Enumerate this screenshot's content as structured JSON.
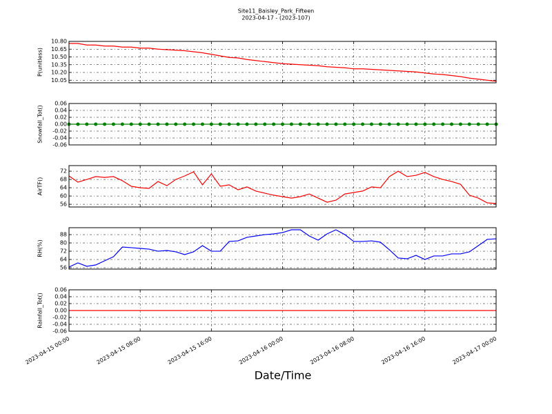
{
  "figure": {
    "title": "Site11_Baisley_Park_Fifteen",
    "subtitle": "2023-04-17 - (2023-107)",
    "xlabel": "Date/Time"
  },
  "chart_data": [
    {
      "type": "line",
      "ylabel": "P(unitless)",
      "grid": true,
      "x": [
        "2023-04-15 00:00",
        "2023-04-15 01:00",
        "2023-04-15 02:00",
        "2023-04-15 03:00",
        "2023-04-15 04:00",
        "2023-04-15 05:00",
        "2023-04-15 06:00",
        "2023-04-15 07:00",
        "2023-04-15 08:00",
        "2023-04-15 09:00",
        "2023-04-15 10:00",
        "2023-04-15 11:00",
        "2023-04-15 12:00",
        "2023-04-15 13:00",
        "2023-04-15 14:00",
        "2023-04-15 15:00",
        "2023-04-15 16:00",
        "2023-04-15 17:00",
        "2023-04-15 18:00",
        "2023-04-15 19:00",
        "2023-04-15 20:00",
        "2023-04-15 21:00",
        "2023-04-15 22:00",
        "2023-04-15 23:00",
        "2023-04-16 00:00",
        "2023-04-16 01:00",
        "2023-04-16 02:00",
        "2023-04-16 03:00",
        "2023-04-16 04:00",
        "2023-04-16 05:00",
        "2023-04-16 06:00",
        "2023-04-16 07:00",
        "2023-04-16 08:00",
        "2023-04-16 09:00",
        "2023-04-16 10:00",
        "2023-04-16 11:00",
        "2023-04-16 12:00",
        "2023-04-16 13:00",
        "2023-04-16 14:00",
        "2023-04-16 15:00",
        "2023-04-16 16:00",
        "2023-04-16 17:00",
        "2023-04-16 18:00",
        "2023-04-16 19:00",
        "2023-04-16 20:00",
        "2023-04-16 21:00",
        "2023-04-16 22:00",
        "2023-04-16 23:00",
        "2023-04-17 00:00"
      ],
      "series": [
        {
          "color": "#ff0000",
          "values": [
            10.76,
            10.76,
            10.73,
            10.73,
            10.71,
            10.71,
            10.69,
            10.69,
            10.67,
            10.67,
            10.65,
            10.64,
            10.63,
            10.62,
            10.6,
            10.58,
            10.55,
            10.52,
            10.49,
            10.48,
            10.45,
            10.43,
            10.41,
            10.39,
            10.37,
            10.36,
            10.35,
            10.34,
            10.33,
            10.31,
            10.3,
            10.29,
            10.27,
            10.27,
            10.26,
            10.25,
            10.24,
            10.23,
            10.22,
            10.21,
            10.19,
            10.17,
            10.16,
            10.14,
            10.12,
            10.09,
            10.07,
            10.05,
            10.03
          ]
        }
      ],
      "xlim": [
        "2023-04-15 00:00",
        "2023-04-17 00:00"
      ],
      "xticks": [
        "2023-04-15 00:00",
        "2023-04-15 08:00",
        "2023-04-15 16:00",
        "2023-04-16 00:00",
        "2023-04-16 08:00",
        "2023-04-16 16:00",
        "2023-04-17 00:00"
      ],
      "ylim": [
        10.0,
        10.8
      ],
      "yticks": [
        10.05,
        {
          "value": 10.2,
          "label": "10.20"
        },
        10.35,
        {
          "value": 10.5,
          "label": "10.50"
        },
        10.65,
        {
          "value": 10.8,
          "label": "10.80"
        }
      ]
    },
    {
      "type": "line",
      "ylabel": "Snowfall_Tot()",
      "grid": true,
      "marker": true,
      "x": [
        "2023-04-15 00:00",
        "2023-04-15 01:00",
        "2023-04-15 02:00",
        "2023-04-15 03:00",
        "2023-04-15 04:00",
        "2023-04-15 05:00",
        "2023-04-15 06:00",
        "2023-04-15 07:00",
        "2023-04-15 08:00",
        "2023-04-15 09:00",
        "2023-04-15 10:00",
        "2023-04-15 11:00",
        "2023-04-15 12:00",
        "2023-04-15 13:00",
        "2023-04-15 14:00",
        "2023-04-15 15:00",
        "2023-04-15 16:00",
        "2023-04-15 17:00",
        "2023-04-15 18:00",
        "2023-04-15 19:00",
        "2023-04-15 20:00",
        "2023-04-15 21:00",
        "2023-04-15 22:00",
        "2023-04-15 23:00",
        "2023-04-16 00:00",
        "2023-04-16 01:00",
        "2023-04-16 02:00",
        "2023-04-16 03:00",
        "2023-04-16 04:00",
        "2023-04-16 05:00",
        "2023-04-16 06:00",
        "2023-04-16 07:00",
        "2023-04-16 08:00",
        "2023-04-16 09:00",
        "2023-04-16 10:00",
        "2023-04-16 11:00",
        "2023-04-16 12:00",
        "2023-04-16 13:00",
        "2023-04-16 14:00",
        "2023-04-16 15:00",
        "2023-04-16 16:00",
        "2023-04-16 17:00",
        "2023-04-16 18:00",
        "2023-04-16 19:00",
        "2023-04-16 20:00",
        "2023-04-16 21:00",
        "2023-04-16 22:00",
        "2023-04-16 23:00",
        "2023-04-17 00:00"
      ],
      "series": [
        {
          "color": "#008000",
          "values": [
            0,
            0,
            0,
            0,
            0,
            0,
            0,
            0,
            0,
            0,
            0,
            0,
            0,
            0,
            0,
            0,
            0,
            0,
            0,
            0,
            0,
            0,
            0,
            0,
            0,
            0,
            0,
            0,
            0,
            0,
            0,
            0,
            0,
            0,
            0,
            0,
            0,
            0,
            0,
            0,
            0,
            0,
            0,
            0,
            0,
            0,
            0,
            0,
            0
          ]
        }
      ],
      "xlim": [
        "2023-04-15 00:00",
        "2023-04-17 00:00"
      ],
      "xticks": [
        "2023-04-15 00:00",
        "2023-04-15 08:00",
        "2023-04-15 16:00",
        "2023-04-16 00:00",
        "2023-04-16 08:00",
        "2023-04-16 16:00",
        "2023-04-17 00:00"
      ],
      "ylim": [
        -0.06,
        0.06
      ],
      "yticks": [
        -0.06,
        -0.04,
        -0.02,
        {
          "value": 0,
          "label": "0.00"
        },
        0.02,
        0.04,
        0.06
      ]
    },
    {
      "type": "line",
      "ylabel": "AirTF()",
      "grid": true,
      "x": [
        "2023-04-15 00:00",
        "2023-04-15 01:00",
        "2023-04-15 02:00",
        "2023-04-15 03:00",
        "2023-04-15 04:00",
        "2023-04-15 05:00",
        "2023-04-15 06:00",
        "2023-04-15 07:00",
        "2023-04-15 08:00",
        "2023-04-15 09:00",
        "2023-04-15 10:00",
        "2023-04-15 11:00",
        "2023-04-15 12:00",
        "2023-04-15 13:00",
        "2023-04-15 14:00",
        "2023-04-15 15:00",
        "2023-04-15 16:00",
        "2023-04-15 17:00",
        "2023-04-15 18:00",
        "2023-04-15 19:00",
        "2023-04-15 20:00",
        "2023-04-15 21:00",
        "2023-04-15 22:00",
        "2023-04-15 23:00",
        "2023-04-16 00:00",
        "2023-04-16 01:00",
        "2023-04-16 02:00",
        "2023-04-16 03:00",
        "2023-04-16 04:00",
        "2023-04-16 05:00",
        "2023-04-16 06:00",
        "2023-04-16 07:00",
        "2023-04-16 08:00",
        "2023-04-16 09:00",
        "2023-04-16 10:00",
        "2023-04-16 11:00",
        "2023-04-16 12:00",
        "2023-04-16 13:00",
        "2023-04-16 14:00",
        "2023-04-16 15:00",
        "2023-04-16 16:00",
        "2023-04-16 17:00",
        "2023-04-16 18:00",
        "2023-04-16 19:00",
        "2023-04-16 20:00",
        "2023-04-16 21:00",
        "2023-04-16 22:00",
        "2023-04-16 23:00",
        "2023-04-17 00:00"
      ],
      "series": [
        {
          "color": "#ff0000",
          "values": [
            69.7,
            66.7,
            68,
            69.4,
            69,
            69.4,
            67.4,
            64.7,
            64,
            63.7,
            67,
            65,
            68,
            69.7,
            71.7,
            65.4,
            70.7,
            64.7,
            65.4,
            63,
            64.4,
            62.4,
            61.4,
            60.4,
            59.7,
            59,
            59.7,
            61,
            59,
            57,
            58,
            61,
            61.7,
            62.4,
            64.4,
            64,
            69.4,
            72,
            69.4,
            70,
            71.4,
            69.4,
            68,
            67,
            65.7,
            60.4,
            59,
            56.7,
            56.4
          ]
        }
      ],
      "xlim": [
        "2023-04-15 00:00",
        "2023-04-17 00:00"
      ],
      "xticks": [
        "2023-04-15 00:00",
        "2023-04-15 08:00",
        "2023-04-15 16:00",
        "2023-04-16 00:00",
        "2023-04-16 08:00",
        "2023-04-16 16:00",
        "2023-04-17 00:00"
      ],
      "ylim": [
        54.7,
        74.7
      ],
      "yticks": [
        56,
        60,
        64,
        68,
        72
      ]
    },
    {
      "type": "line",
      "ylabel": "RH(%)",
      "grid": true,
      "x": [
        "2023-04-15 00:00",
        "2023-04-15 01:00",
        "2023-04-15 02:00",
        "2023-04-15 03:00",
        "2023-04-15 04:00",
        "2023-04-15 05:00",
        "2023-04-15 06:00",
        "2023-04-15 07:00",
        "2023-04-15 08:00",
        "2023-04-15 09:00",
        "2023-04-15 10:00",
        "2023-04-15 11:00",
        "2023-04-15 12:00",
        "2023-04-15 13:00",
        "2023-04-15 14:00",
        "2023-04-15 15:00",
        "2023-04-15 16:00",
        "2023-04-15 17:00",
        "2023-04-15 18:00",
        "2023-04-15 19:00",
        "2023-04-15 20:00",
        "2023-04-15 21:00",
        "2023-04-15 22:00",
        "2023-04-15 23:00",
        "2023-04-16 00:00",
        "2023-04-16 01:00",
        "2023-04-16 02:00",
        "2023-04-16 03:00",
        "2023-04-16 04:00",
        "2023-04-16 05:00",
        "2023-04-16 06:00",
        "2023-04-16 07:00",
        "2023-04-16 08:00",
        "2023-04-16 09:00",
        "2023-04-16 10:00",
        "2023-04-16 11:00",
        "2023-04-16 12:00",
        "2023-04-16 13:00",
        "2023-04-16 14:00",
        "2023-04-16 15:00",
        "2023-04-16 16:00",
        "2023-04-16 17:00",
        "2023-04-16 18:00",
        "2023-04-16 19:00",
        "2023-04-16 20:00",
        "2023-04-16 21:00",
        "2023-04-16 22:00",
        "2023-04-16 23:00",
        "2023-04-17 00:00"
      ],
      "series": [
        {
          "color": "#0000ff",
          "values": [
            56.7,
            60.7,
            57.4,
            58.7,
            62.7,
            66.7,
            76,
            75.4,
            74.7,
            74,
            72,
            72.7,
            71.4,
            68.7,
            71.4,
            77.4,
            72,
            72,
            81.4,
            82,
            85.4,
            86.7,
            88,
            88.7,
            90,
            92.7,
            92.7,
            86.7,
            82.7,
            88.7,
            92.7,
            88,
            81.4,
            81.4,
            82,
            80.7,
            73.4,
            65.4,
            64.7,
            68,
            64,
            67.4,
            67.4,
            69.4,
            69.4,
            71.4,
            77.4,
            83.4,
            84
          ]
        }
      ],
      "xlim": [
        "2023-04-15 00:00",
        "2023-04-17 00:00"
      ],
      "xticks": [
        "2023-04-15 00:00",
        "2023-04-15 08:00",
        "2023-04-15 16:00",
        "2023-04-16 00:00",
        "2023-04-16 08:00",
        "2023-04-16 16:00",
        "2023-04-17 00:00"
      ],
      "ylim": [
        54.7,
        94.7
      ],
      "yticks": [
        56,
        64,
        72,
        80,
        88
      ]
    },
    {
      "type": "line",
      "ylabel": "Rainfall_Tot()",
      "grid": true,
      "x": [
        "2023-04-15 00:00",
        "2023-04-15 01:00",
        "2023-04-15 02:00",
        "2023-04-15 03:00",
        "2023-04-15 04:00",
        "2023-04-15 05:00",
        "2023-04-15 06:00",
        "2023-04-15 07:00",
        "2023-04-15 08:00",
        "2023-04-15 09:00",
        "2023-04-15 10:00",
        "2023-04-15 11:00",
        "2023-04-15 12:00",
        "2023-04-15 13:00",
        "2023-04-15 14:00",
        "2023-04-15 15:00",
        "2023-04-15 16:00",
        "2023-04-15 17:00",
        "2023-04-15 18:00",
        "2023-04-15 19:00",
        "2023-04-15 20:00",
        "2023-04-15 21:00",
        "2023-04-15 22:00",
        "2023-04-15 23:00",
        "2023-04-16 00:00",
        "2023-04-16 01:00",
        "2023-04-16 02:00",
        "2023-04-16 03:00",
        "2023-04-16 04:00",
        "2023-04-16 05:00",
        "2023-04-16 06:00",
        "2023-04-16 07:00",
        "2023-04-16 08:00",
        "2023-04-16 09:00",
        "2023-04-16 10:00",
        "2023-04-16 11:00",
        "2023-04-16 12:00",
        "2023-04-16 13:00",
        "2023-04-16 14:00",
        "2023-04-16 15:00",
        "2023-04-16 16:00",
        "2023-04-16 17:00",
        "2023-04-16 18:00",
        "2023-04-16 19:00",
        "2023-04-16 20:00",
        "2023-04-16 21:00",
        "2023-04-16 22:00",
        "2023-04-16 23:00",
        "2023-04-17 00:00"
      ],
      "series": [
        {
          "color": "#ff0000",
          "values": [
            0,
            0,
            0,
            0,
            0,
            0,
            0,
            0,
            0,
            0,
            0,
            0,
            0,
            0,
            0,
            0,
            0,
            0,
            0,
            0,
            0,
            0,
            0,
            0,
            0,
            0,
            0,
            0,
            0,
            0,
            0,
            0,
            0,
            0,
            0,
            0,
            0,
            0,
            0,
            0,
            0,
            0,
            0,
            0,
            0,
            0,
            0,
            0,
            0
          ]
        }
      ],
      "xlim": [
        "2023-04-15 00:00",
        "2023-04-17 00:00"
      ],
      "xticks": [
        "2023-04-15 00:00",
        "2023-04-15 08:00",
        "2023-04-15 16:00",
        "2023-04-16 00:00",
        "2023-04-16 08:00",
        "2023-04-16 16:00",
        "2023-04-17 00:00"
      ],
      "ylim": [
        -0.06,
        0.06
      ],
      "yticks": [
        -0.06,
        -0.04,
        -0.02,
        {
          "value": 0,
          "label": "0.00"
        },
        0.02,
        0.04,
        0.06
      ]
    }
  ]
}
